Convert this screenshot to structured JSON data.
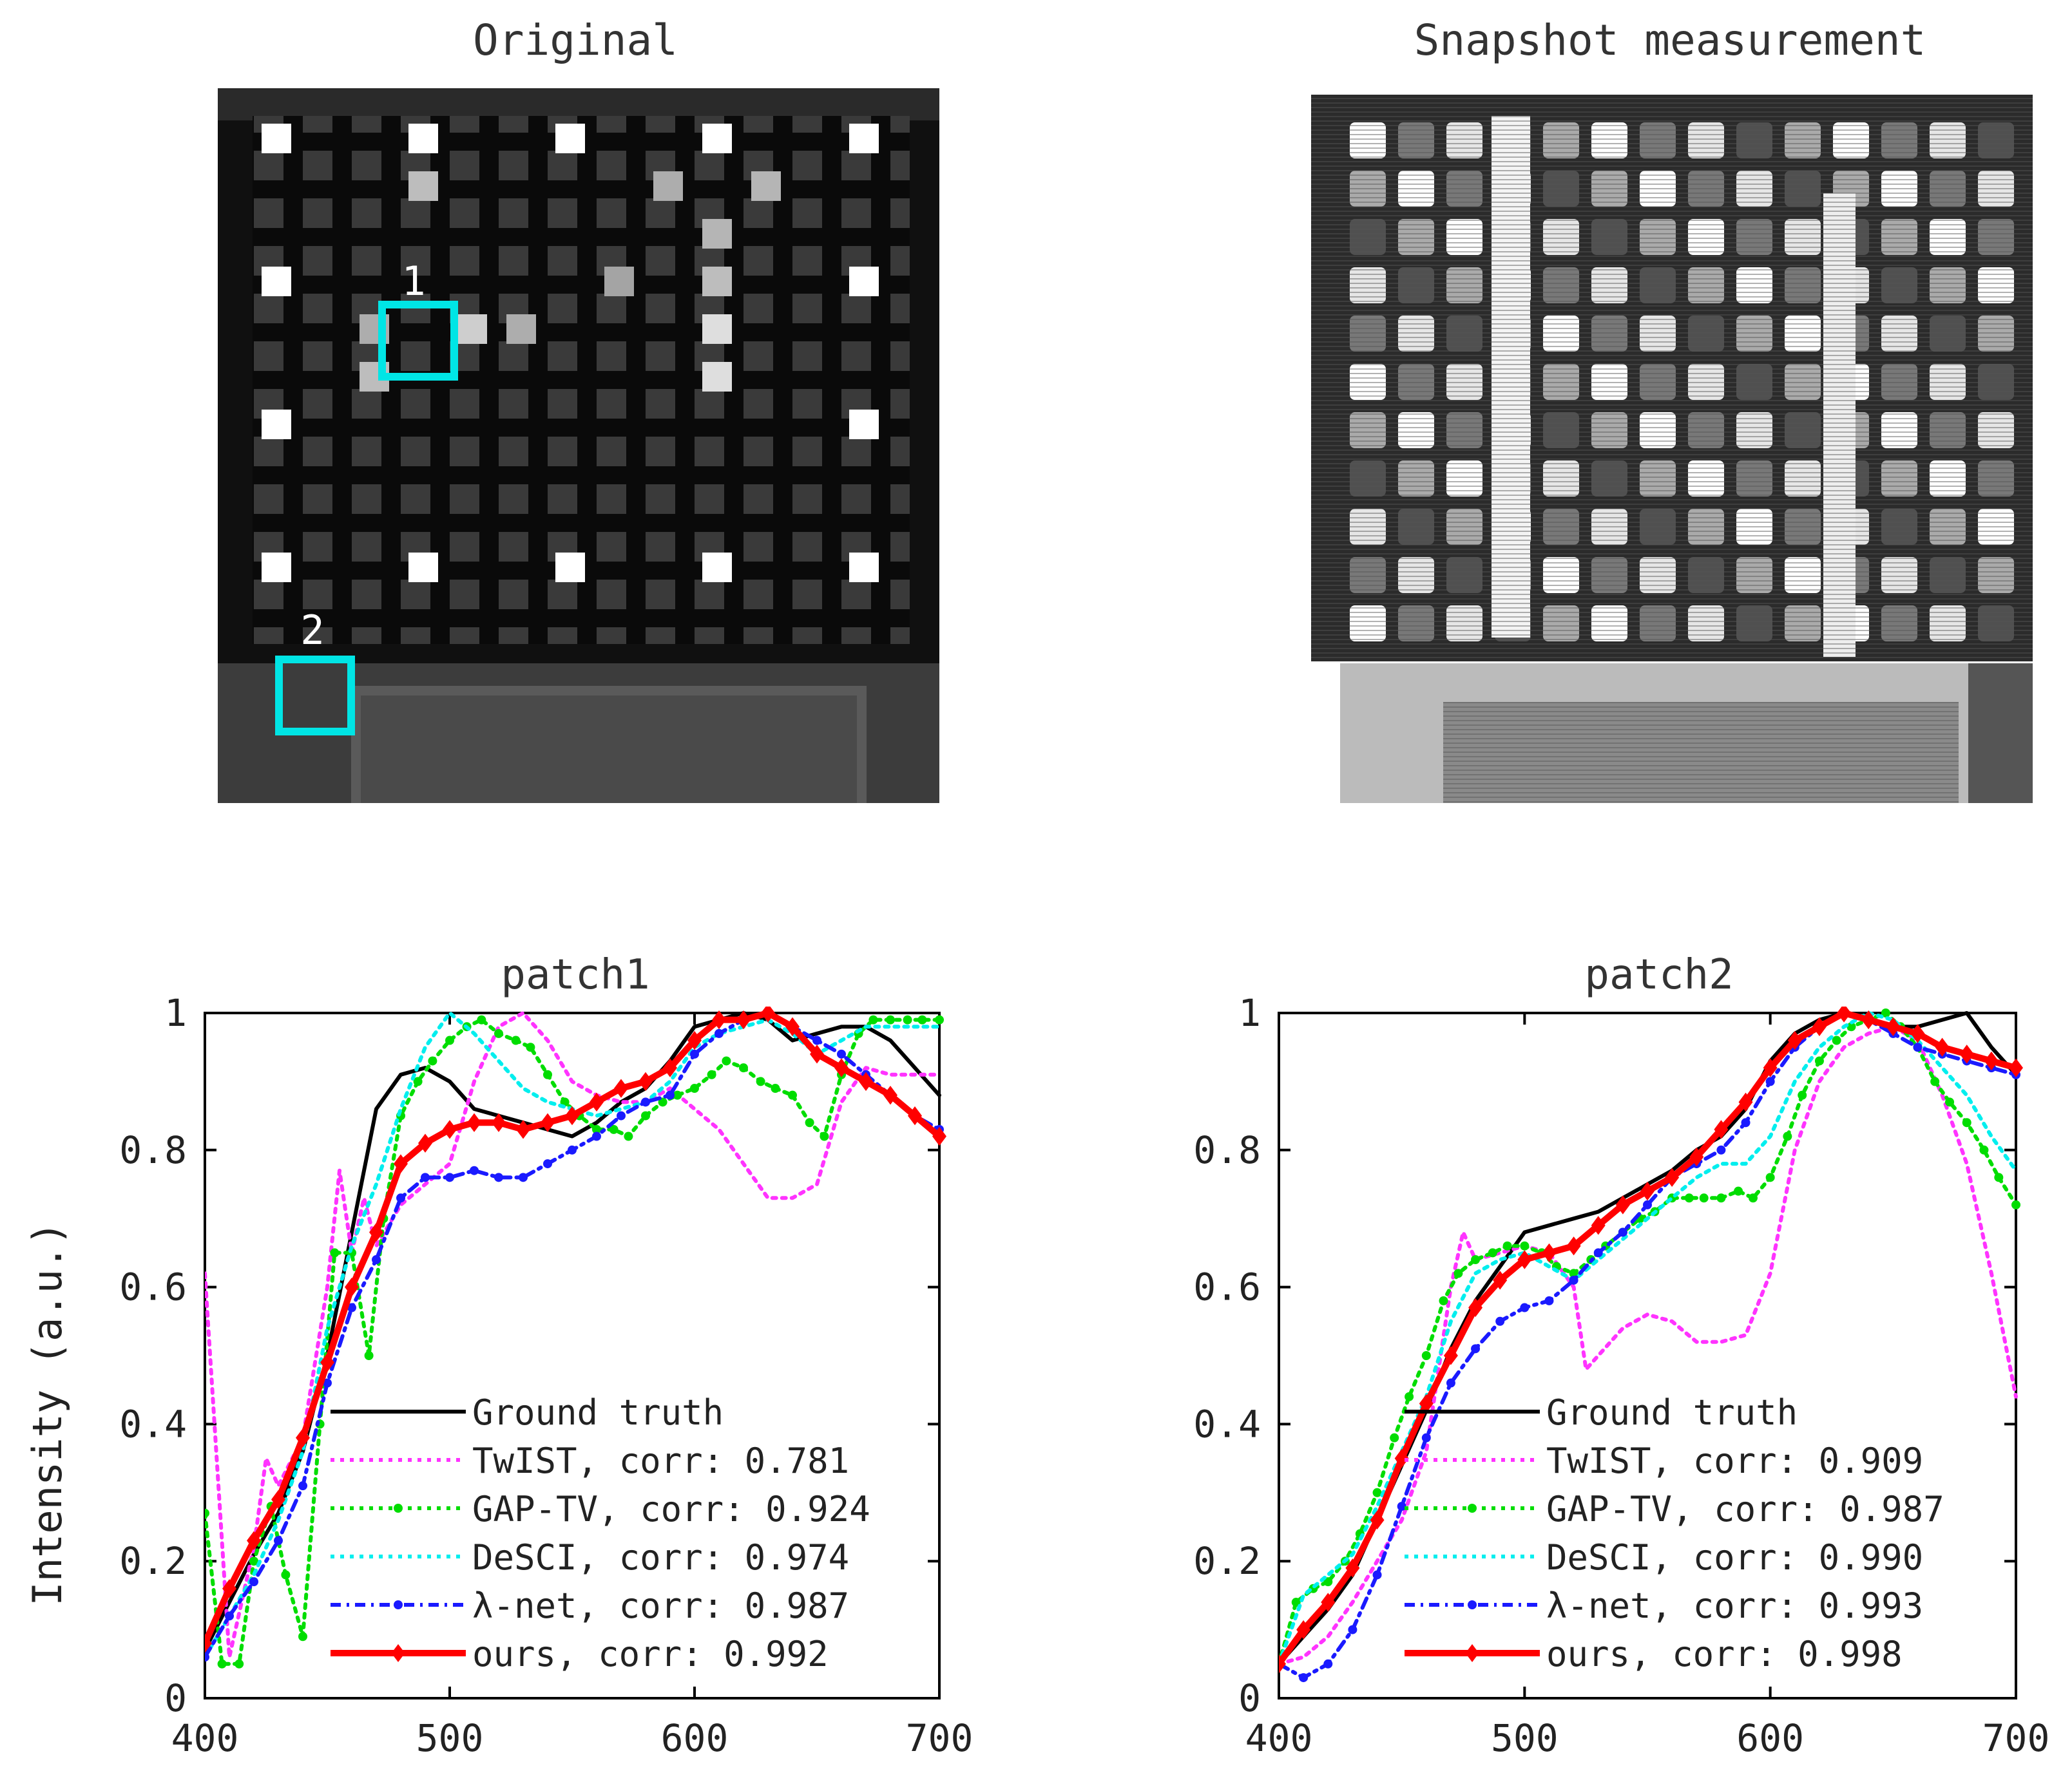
{
  "colors": {
    "ground_truth": "#000000",
    "twist": "#ff33ff",
    "gaptv": "#00dd00",
    "desci": "#00eeee",
    "lambdanet": "#1a1aff",
    "ours": "#ff0000",
    "box": "#00e5e5"
  },
  "images": {
    "original": {
      "title": "Original",
      "box1_label": "1",
      "box2_label": "2"
    },
    "snapshot": {
      "title": "Snapshot measurement"
    }
  },
  "chart_data": [
    {
      "type": "line",
      "title": "patch1",
      "xlabel": "",
      "ylabel": "Intensity (a.u.)",
      "xlim": [
        400,
        700
      ],
      "ylim": [
        0,
        1
      ],
      "xticks": [
        "400",
        "500",
        "600",
        "700"
      ],
      "yticks": [
        "0",
        "0.2",
        "0.4",
        "0.6",
        "0.8",
        "1"
      ],
      "legend_position": "bottom-right",
      "series": [
        {
          "key": "gt",
          "name": "Ground truth",
          "legend": "Ground truth",
          "x": [
            400,
            410,
            420,
            430,
            440,
            450,
            460,
            470,
            480,
            490,
            500,
            510,
            520,
            530,
            540,
            550,
            560,
            570,
            580,
            590,
            600,
            610,
            620,
            630,
            640,
            650,
            660,
            670,
            680,
            690,
            700
          ],
          "y": [
            0.07,
            0.14,
            0.21,
            0.27,
            0.36,
            0.5,
            0.68,
            0.86,
            0.91,
            0.92,
            0.9,
            0.86,
            0.85,
            0.84,
            0.83,
            0.82,
            0.84,
            0.87,
            0.89,
            0.93,
            0.98,
            0.99,
            1.0,
            0.99,
            0.96,
            0.97,
            0.98,
            0.98,
            0.96,
            0.92,
            0.88
          ]
        },
        {
          "key": "twist",
          "name": "TwIST",
          "legend": "TwIST, corr: 0.781",
          "x": [
            400,
            410,
            420,
            425,
            430,
            440,
            450,
            455,
            460,
            465,
            470,
            480,
            490,
            500,
            510,
            520,
            530,
            540,
            550,
            560,
            570,
            580,
            590,
            600,
            610,
            620,
            630,
            640,
            650,
            660,
            670,
            680,
            690,
            700
          ],
          "y": [
            0.62,
            0.06,
            0.22,
            0.35,
            0.31,
            0.38,
            0.6,
            0.77,
            0.65,
            0.73,
            0.66,
            0.72,
            0.75,
            0.78,
            0.9,
            0.98,
            1.0,
            0.96,
            0.9,
            0.88,
            0.87,
            0.87,
            0.89,
            0.86,
            0.83,
            0.78,
            0.73,
            0.73,
            0.75,
            0.87,
            0.92,
            0.91,
            0.91,
            0.91
          ]
        },
        {
          "key": "gaptv",
          "name": "GAP-TV",
          "legend": "GAP-TV, corr: 0.924",
          "x": [
            400,
            407,
            414,
            420,
            427,
            433,
            440,
            447,
            453,
            460,
            467,
            473,
            480,
            487,
            493,
            500,
            507,
            513,
            520,
            527,
            533,
            540,
            547,
            553,
            560,
            567,
            573,
            580,
            587,
            593,
            600,
            607,
            613,
            620,
            627,
            633,
            640,
            647,
            653,
            660,
            667,
            673,
            680,
            687,
            693,
            700
          ],
          "y": [
            0.27,
            0.05,
            0.05,
            0.2,
            0.28,
            0.18,
            0.09,
            0.4,
            0.65,
            0.65,
            0.5,
            0.7,
            0.85,
            0.9,
            0.93,
            0.96,
            0.98,
            0.99,
            0.97,
            0.96,
            0.95,
            0.91,
            0.87,
            0.85,
            0.83,
            0.83,
            0.82,
            0.85,
            0.87,
            0.88,
            0.89,
            0.91,
            0.93,
            0.92,
            0.9,
            0.89,
            0.88,
            0.84,
            0.82,
            0.91,
            0.97,
            0.99,
            0.99,
            0.99,
            0.99,
            0.99
          ]
        },
        {
          "key": "desci",
          "name": "DeSCI",
          "legend": "DeSCI, corr: 0.974",
          "x": [
            400,
            410,
            420,
            430,
            440,
            450,
            460,
            470,
            480,
            490,
            500,
            510,
            520,
            530,
            540,
            550,
            560,
            570,
            580,
            590,
            600,
            610,
            620,
            630,
            640,
            650,
            660,
            670,
            680,
            690,
            700
          ],
          "y": [
            0.06,
            0.12,
            0.18,
            0.26,
            0.36,
            0.54,
            0.66,
            0.75,
            0.86,
            0.95,
            1.0,
            0.97,
            0.93,
            0.89,
            0.87,
            0.86,
            0.85,
            0.86,
            0.87,
            0.9,
            0.95,
            0.97,
            0.98,
            0.99,
            0.97,
            0.94,
            0.96,
            0.98,
            0.98,
            0.98,
            0.98
          ]
        },
        {
          "key": "lambdanet",
          "name": "λ-net",
          "legend": "λ-net, corr: 0.987",
          "x": [
            400,
            410,
            420,
            430,
            440,
            450,
            460,
            470,
            480,
            490,
            500,
            510,
            520,
            530,
            540,
            550,
            560,
            570,
            580,
            590,
            600,
            610,
            620,
            630,
            640,
            650,
            660,
            670,
            680,
            690,
            700
          ],
          "y": [
            0.06,
            0.12,
            0.17,
            0.23,
            0.31,
            0.46,
            0.57,
            0.64,
            0.73,
            0.76,
            0.76,
            0.77,
            0.76,
            0.76,
            0.78,
            0.8,
            0.82,
            0.85,
            0.87,
            0.88,
            0.94,
            0.97,
            0.99,
            1.0,
            0.98,
            0.96,
            0.94,
            0.91,
            0.88,
            0.85,
            0.83
          ]
        },
        {
          "key": "ours",
          "name": "ours",
          "legend": "ours, corr: 0.992",
          "x": [
            400,
            410,
            420,
            430,
            440,
            450,
            460,
            470,
            480,
            490,
            500,
            510,
            520,
            530,
            540,
            550,
            560,
            570,
            580,
            590,
            600,
            610,
            620,
            630,
            640,
            650,
            660,
            670,
            680,
            690,
            700
          ],
          "y": [
            0.08,
            0.16,
            0.23,
            0.29,
            0.38,
            0.49,
            0.6,
            0.68,
            0.78,
            0.81,
            0.83,
            0.84,
            0.84,
            0.83,
            0.84,
            0.85,
            0.87,
            0.89,
            0.9,
            0.92,
            0.96,
            0.99,
            0.99,
            1.0,
            0.98,
            0.94,
            0.92,
            0.9,
            0.88,
            0.85,
            0.82
          ]
        }
      ]
    },
    {
      "type": "line",
      "title": "patch2",
      "xlabel": "",
      "ylabel": "",
      "xlim": [
        400,
        700
      ],
      "ylim": [
        0,
        1
      ],
      "xticks": [
        "400",
        "500",
        "600",
        "700"
      ],
      "yticks": [
        "0",
        "0.2",
        "0.4",
        "0.6",
        "0.8",
        "1"
      ],
      "legend_position": "bottom-right",
      "series": [
        {
          "key": "gt",
          "name": "Ground truth",
          "legend": "Ground truth",
          "x": [
            400,
            410,
            420,
            430,
            440,
            450,
            460,
            470,
            480,
            490,
            500,
            510,
            520,
            530,
            540,
            550,
            560,
            570,
            580,
            590,
            600,
            610,
            620,
            630,
            640,
            650,
            660,
            670,
            680,
            690,
            700
          ],
          "y": [
            0.05,
            0.09,
            0.13,
            0.18,
            0.26,
            0.34,
            0.42,
            0.51,
            0.58,
            0.63,
            0.68,
            0.69,
            0.7,
            0.71,
            0.73,
            0.75,
            0.77,
            0.8,
            0.82,
            0.86,
            0.93,
            0.97,
            0.99,
            1.0,
            0.99,
            0.98,
            0.98,
            0.99,
            1.0,
            0.95,
            0.91
          ]
        },
        {
          "key": "twist",
          "name": "TwIST",
          "legend": "TwIST, corr: 0.909",
          "x": [
            400,
            410,
            420,
            430,
            440,
            450,
            460,
            470,
            475,
            480,
            490,
            500,
            510,
            520,
            525,
            530,
            540,
            550,
            560,
            570,
            580,
            590,
            600,
            610,
            620,
            630,
            640,
            650,
            660,
            670,
            680,
            690,
            700
          ],
          "y": [
            0.05,
            0.06,
            0.09,
            0.14,
            0.2,
            0.26,
            0.36,
            0.6,
            0.68,
            0.64,
            0.65,
            0.66,
            0.65,
            0.6,
            0.48,
            0.5,
            0.54,
            0.56,
            0.55,
            0.52,
            0.52,
            0.53,
            0.62,
            0.8,
            0.9,
            0.95,
            0.97,
            0.98,
            0.96,
            0.88,
            0.78,
            0.62,
            0.44
          ]
        },
        {
          "key": "gaptv",
          "name": "GAP-TV",
          "legend": "GAP-TV, corr: 0.987",
          "x": [
            400,
            407,
            414,
            420,
            427,
            433,
            440,
            447,
            453,
            460,
            467,
            473,
            480,
            487,
            493,
            500,
            507,
            513,
            520,
            527,
            533,
            540,
            547,
            553,
            560,
            567,
            573,
            580,
            587,
            593,
            600,
            607,
            613,
            620,
            627,
            633,
            640,
            647,
            653,
            660,
            667,
            673,
            680,
            687,
            693,
            700
          ],
          "y": [
            0.05,
            0.14,
            0.16,
            0.17,
            0.2,
            0.24,
            0.3,
            0.38,
            0.44,
            0.5,
            0.58,
            0.62,
            0.64,
            0.65,
            0.66,
            0.66,
            0.65,
            0.63,
            0.62,
            0.64,
            0.66,
            0.68,
            0.7,
            0.71,
            0.73,
            0.73,
            0.73,
            0.73,
            0.74,
            0.73,
            0.76,
            0.82,
            0.88,
            0.93,
            0.96,
            0.98,
            0.99,
            1.0,
            0.98,
            0.95,
            0.9,
            0.87,
            0.84,
            0.8,
            0.76,
            0.72
          ]
        },
        {
          "key": "desci",
          "name": "DeSCI",
          "legend": "DeSCI, corr: 0.990",
          "x": [
            400,
            410,
            420,
            430,
            440,
            450,
            460,
            470,
            480,
            490,
            500,
            510,
            520,
            530,
            540,
            550,
            560,
            570,
            580,
            590,
            600,
            610,
            620,
            630,
            640,
            650,
            660,
            670,
            680,
            690,
            700
          ],
          "y": [
            0.05,
            0.15,
            0.18,
            0.21,
            0.28,
            0.36,
            0.44,
            0.55,
            0.62,
            0.64,
            0.65,
            0.63,
            0.61,
            0.64,
            0.67,
            0.7,
            0.73,
            0.76,
            0.78,
            0.78,
            0.82,
            0.9,
            0.95,
            0.98,
            1.0,
            0.99,
            0.96,
            0.92,
            0.88,
            0.82,
            0.77
          ]
        },
        {
          "key": "lambdanet",
          "name": "λ-net",
          "legend": "λ-net, corr: 0.993",
          "x": [
            400,
            410,
            420,
            430,
            440,
            450,
            460,
            470,
            480,
            490,
            500,
            510,
            520,
            530,
            540,
            550,
            560,
            570,
            580,
            590,
            600,
            610,
            620,
            630,
            640,
            650,
            660,
            670,
            680,
            690,
            700
          ],
          "y": [
            0.05,
            0.03,
            0.05,
            0.1,
            0.18,
            0.28,
            0.38,
            0.46,
            0.51,
            0.55,
            0.57,
            0.58,
            0.61,
            0.65,
            0.68,
            0.72,
            0.76,
            0.78,
            0.8,
            0.84,
            0.9,
            0.95,
            0.98,
            1.0,
            0.99,
            0.97,
            0.95,
            0.94,
            0.93,
            0.92,
            0.91
          ]
        },
        {
          "key": "ours",
          "name": "ours",
          "legend": "ours, corr: 0.998",
          "x": [
            400,
            410,
            420,
            430,
            440,
            450,
            460,
            470,
            480,
            490,
            500,
            510,
            520,
            530,
            540,
            550,
            560,
            570,
            580,
            590,
            600,
            610,
            620,
            630,
            640,
            650,
            660,
            670,
            680,
            690,
            700
          ],
          "y": [
            0.05,
            0.1,
            0.14,
            0.19,
            0.26,
            0.35,
            0.43,
            0.5,
            0.57,
            0.61,
            0.64,
            0.65,
            0.66,
            0.69,
            0.72,
            0.74,
            0.76,
            0.79,
            0.83,
            0.87,
            0.92,
            0.96,
            0.98,
            1.0,
            0.99,
            0.98,
            0.97,
            0.95,
            0.94,
            0.93,
            0.92
          ]
        }
      ]
    }
  ]
}
